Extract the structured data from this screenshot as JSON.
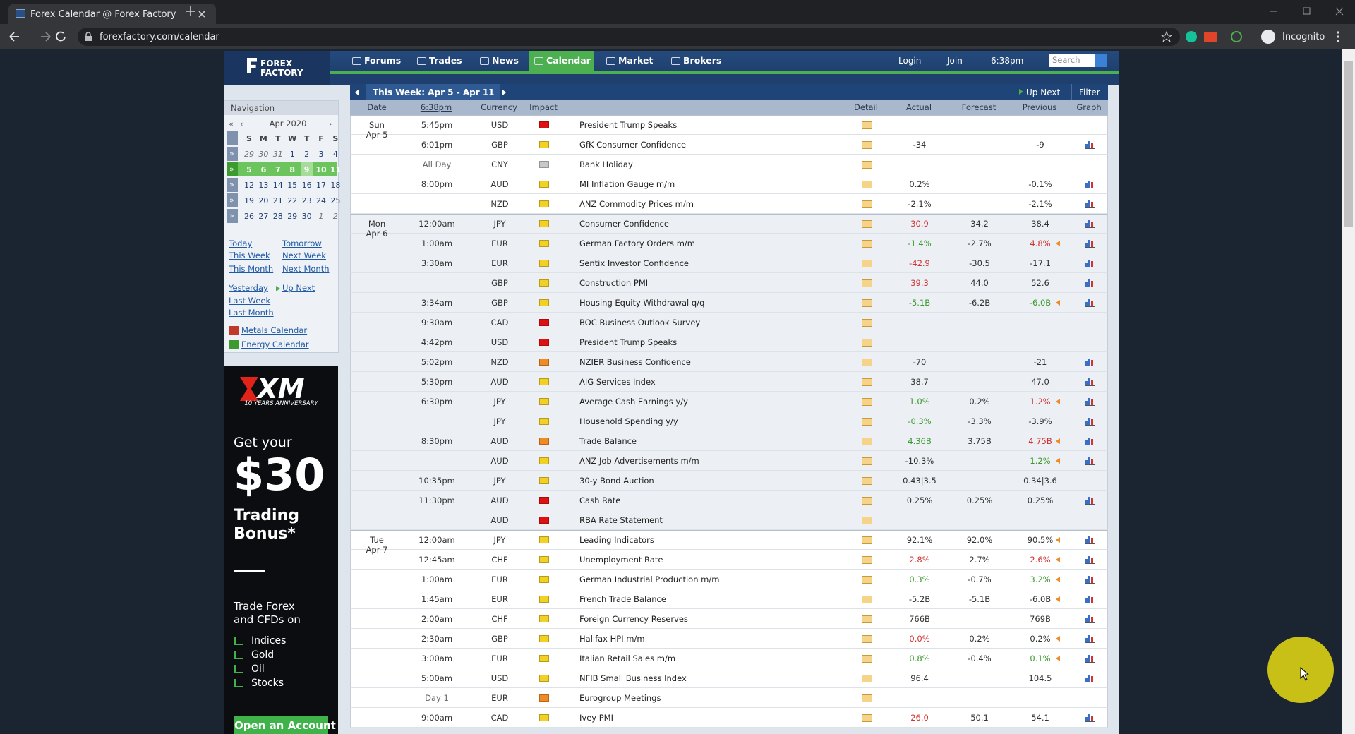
{
  "browser": {
    "tab_title": "Forex Calendar @ Forex Factory",
    "url": "forexfactory.com/calendar",
    "profile": "Incognito"
  },
  "site_header": {
    "logo_lines": [
      "FOREX",
      "FACTORY"
    ],
    "nav": [
      "Forums",
      "Trades",
      "News",
      "Calendar",
      "Market",
      "Brokers"
    ],
    "active_nav": 3,
    "login": "Login",
    "join": "Join",
    "clock": "6:38pm",
    "search_placeholder": "Search"
  },
  "sidebar": {
    "title": "Navigation",
    "mini_calendar": {
      "month": "Apr 2020",
      "arrows": [
        "«",
        "‹",
        "›"
      ],
      "week_button": "»",
      "weekdays": [
        "S",
        "M",
        "T",
        "W",
        "T",
        "F",
        "S"
      ],
      "weeks": [
        [
          "29",
          "30",
          "31",
          "1",
          "2",
          "3",
          "4"
        ],
        [
          "5",
          "6",
          "7",
          "8",
          "9",
          "10",
          "11"
        ],
        [
          "12",
          "13",
          "14",
          "15",
          "16",
          "17",
          "18"
        ],
        [
          "19",
          "20",
          "21",
          "22",
          "23",
          "24",
          "25"
        ],
        [
          "26",
          "27",
          "28",
          "29",
          "30",
          "1",
          "2"
        ]
      ],
      "current_week": 1,
      "today": "9"
    },
    "links": [
      [
        "Today",
        "Tomorrow"
      ],
      [
        "This Week",
        "Next Week"
      ],
      [
        "This Month",
        "Next Month"
      ],
      [
        "Yesterday",
        "Up Next"
      ],
      [
        "Last Week"
      ],
      [
        "Last Month"
      ]
    ],
    "special_links": [
      "Metals Calendar",
      "Energy Calendar"
    ],
    "ad": {
      "brand": "XM",
      "tagline": "10 YEARS ANNIVERSARY",
      "lines": [
        "Get your",
        "$30",
        "Trading",
        "Bonus*"
      ],
      "sub": [
        "Trade Forex",
        "and CFDs on"
      ],
      "items": [
        "Indices",
        "Gold",
        "Oil",
        "Stocks"
      ],
      "button": "Open an Account"
    }
  },
  "calendar": {
    "range": "This Week: Apr 5 - Apr 11",
    "up_next": "Up Next",
    "filter": "Filter",
    "columns": [
      "Date",
      "6:38pm",
      "Currency",
      "Impact",
      "Detail",
      "Actual",
      "Forecast",
      "Previous",
      "Graph"
    ],
    "impact_colors": {
      "high": "#e01010",
      "medium": "#f08a24",
      "low": "#f2d024",
      "holiday": "#c8c8c8"
    },
    "tone_colors": {
      "better": "#3c9a2f",
      "worse": "#d23232"
    },
    "days": [
      {
        "day": "Sun",
        "date": "Apr 5",
        "rows": [
          {
            "time": "5:45pm",
            "currency": "USD",
            "impact": "high",
            "event": "President Trump Speaks"
          },
          {
            "time": "6:01pm",
            "currency": "GBP",
            "impact": "low",
            "event": "GfK Consumer Confidence",
            "actual": "-34",
            "previous": "-9",
            "graph": true
          },
          {
            "time": "All Day",
            "currency": "CNY",
            "impact": "holiday",
            "event": "Bank Holiday"
          },
          {
            "time": "8:00pm",
            "currency": "AUD",
            "impact": "low",
            "event": "MI Inflation Gauge m/m",
            "actual": "0.2%",
            "previous": "-0.1%",
            "graph": true
          },
          {
            "currency": "NZD",
            "impact": "low",
            "event": "ANZ Commodity Prices m/m",
            "actual": "-2.1%",
            "previous": "-2.1%",
            "graph": true
          }
        ]
      },
      {
        "day": "Mon",
        "date": "Apr 6",
        "rows": [
          {
            "time": "12:00am",
            "currency": "JPY",
            "impact": "low",
            "event": "Consumer Confidence",
            "actual": "30.9",
            "actual_tone": "worse",
            "forecast": "34.2",
            "previous": "38.4",
            "graph": true
          },
          {
            "time": "1:00am",
            "currency": "EUR",
            "impact": "low",
            "event": "German Factory Orders m/m",
            "actual": "-1.4%",
            "actual_tone": "better",
            "forecast": "-2.7%",
            "previous": "4.8%",
            "previous_tone": "worse",
            "revised": true,
            "graph": true
          },
          {
            "time": "3:30am",
            "currency": "EUR",
            "impact": "low",
            "event": "Sentix Investor Confidence",
            "actual": "-42.9",
            "actual_tone": "worse",
            "forecast": "-30.5",
            "previous": "-17.1",
            "graph": true
          },
          {
            "currency": "GBP",
            "impact": "low",
            "event": "Construction PMI",
            "actual": "39.3",
            "actual_tone": "worse",
            "forecast": "44.0",
            "previous": "52.6",
            "graph": true
          },
          {
            "time": "3:34am",
            "currency": "GBP",
            "impact": "low",
            "event": "Housing Equity Withdrawal q/q",
            "actual": "-5.1B",
            "actual_tone": "better",
            "forecast": "-6.2B",
            "previous": "-6.0B",
            "previous_tone": "better",
            "revised": true,
            "graph": true
          },
          {
            "time": "9:30am",
            "currency": "CAD",
            "impact": "high",
            "event": "BOC Business Outlook Survey"
          },
          {
            "time": "4:42pm",
            "currency": "USD",
            "impact": "high",
            "event": "President Trump Speaks"
          },
          {
            "time": "5:02pm",
            "currency": "NZD",
            "impact": "medium",
            "event": "NZIER Business Confidence",
            "actual": "-70",
            "previous": "-21",
            "graph": true
          },
          {
            "time": "5:30pm",
            "currency": "AUD",
            "impact": "low",
            "event": "AIG Services Index",
            "actual": "38.7",
            "previous": "47.0",
            "graph": true
          },
          {
            "time": "6:30pm",
            "currency": "JPY",
            "impact": "low",
            "event": "Average Cash Earnings y/y",
            "actual": "1.0%",
            "actual_tone": "better",
            "forecast": "0.2%",
            "previous": "1.2%",
            "previous_tone": "worse",
            "revised": true,
            "graph": true
          },
          {
            "currency": "JPY",
            "impact": "low",
            "event": "Household Spending y/y",
            "actual": "-0.3%",
            "actual_tone": "better",
            "forecast": "-3.3%",
            "previous": "-3.9%",
            "graph": true
          },
          {
            "time": "8:30pm",
            "currency": "AUD",
            "impact": "medium",
            "event": "Trade Balance",
            "actual": "4.36B",
            "actual_tone": "better",
            "forecast": "3.75B",
            "previous": "4.75B",
            "previous_tone": "worse",
            "revised": true,
            "graph": true
          },
          {
            "currency": "AUD",
            "impact": "low",
            "event": "ANZ Job Advertisements m/m",
            "actual": "-10.3%",
            "previous": "1.2%",
            "previous_tone": "better",
            "revised": true,
            "graph": true
          },
          {
            "time": "10:35pm",
            "currency": "JPY",
            "impact": "low",
            "event": "30-y Bond Auction",
            "actual": "0.43|3.5",
            "previous": "0.34|3.6"
          },
          {
            "time": "11:30pm",
            "currency": "AUD",
            "impact": "high",
            "event": "Cash Rate",
            "actual": "0.25%",
            "forecast": "0.25%",
            "previous": "0.25%",
            "graph": true
          },
          {
            "currency": "AUD",
            "impact": "high",
            "event": "RBA Rate Statement"
          }
        ]
      },
      {
        "day": "Tue",
        "date": "Apr 7",
        "rows": [
          {
            "time": "12:00am",
            "currency": "JPY",
            "impact": "low",
            "event": "Leading Indicators",
            "actual": "92.1%",
            "forecast": "92.0%",
            "previous": "90.5%",
            "revised": true,
            "graph": true
          },
          {
            "time": "12:45am",
            "currency": "CHF",
            "impact": "low",
            "event": "Unemployment Rate",
            "actual": "2.8%",
            "actual_tone": "worse",
            "forecast": "2.7%",
            "previous": "2.6%",
            "previous_tone": "worse",
            "revised": true,
            "graph": true
          },
          {
            "time": "1:00am",
            "currency": "EUR",
            "impact": "low",
            "event": "German Industrial Production m/m",
            "actual": "0.3%",
            "actual_tone": "better",
            "forecast": "-0.7%",
            "previous": "3.2%",
            "previous_tone": "better",
            "revised": true,
            "graph": true
          },
          {
            "time": "1:45am",
            "currency": "EUR",
            "impact": "low",
            "event": "French Trade Balance",
            "actual": "-5.2B",
            "forecast": "-5.1B",
            "previous": "-6.0B",
            "revised": true,
            "graph": true
          },
          {
            "time": "2:00am",
            "currency": "CHF",
            "impact": "low",
            "event": "Foreign Currency Reserves",
            "actual": "766B",
            "previous": "769B",
            "graph": true
          },
          {
            "time": "2:30am",
            "currency": "GBP",
            "impact": "low",
            "event": "Halifax HPI m/m",
            "actual": "0.0%",
            "actual_tone": "worse",
            "forecast": "0.2%",
            "previous": "0.2%",
            "revised": true,
            "graph": true
          },
          {
            "time": "3:00am",
            "currency": "EUR",
            "impact": "low",
            "event": "Italian Retail Sales m/m",
            "actual": "0.8%",
            "actual_tone": "better",
            "forecast": "-0.4%",
            "previous": "0.1%",
            "previous_tone": "better",
            "revised": true,
            "graph": true
          },
          {
            "time": "5:00am",
            "currency": "USD",
            "impact": "low",
            "event": "NFIB Small Business Index",
            "actual": "96.4",
            "previous": "104.5",
            "graph": true
          },
          {
            "time": "Day 1",
            "currency": "EUR",
            "impact": "medium",
            "event": "Eurogroup Meetings"
          },
          {
            "time": "9:00am",
            "currency": "CAD",
            "impact": "low",
            "event": "Ivey PMI",
            "actual": "26.0",
            "actual_tone": "worse",
            "forecast": "50.1",
            "previous": "54.1",
            "graph": true
          }
        ]
      }
    ]
  }
}
